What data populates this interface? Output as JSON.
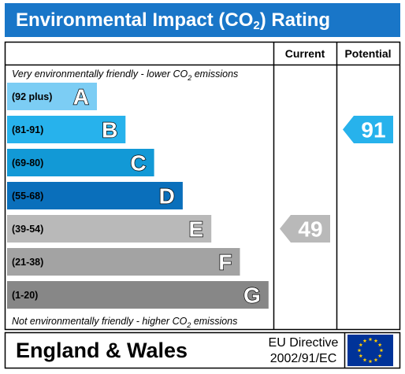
{
  "title_main": "Environmental Impact (CO",
  "title_sub": "2",
  "title_end": ") Rating",
  "columns": {
    "current": "Current",
    "potential": "Potential"
  },
  "top_note": {
    "main": "Very environmentally friendly - lower CO",
    "sub": "2",
    "end": " emissions"
  },
  "bottom_note": {
    "main": "Not environmentally friendly - higher CO",
    "sub": "2",
    "end": " emissions"
  },
  "footer": {
    "region": "England & Wales",
    "directive_line1": "EU Directive",
    "directive_line2": "2002/91/EC"
  },
  "chart_data": {
    "type": "bar",
    "categories": [
      "A",
      "B",
      "C",
      "D",
      "E",
      "F",
      "G"
    ],
    "ranges": [
      "(92 plus)",
      "(81-91)",
      "(69-80)",
      "(55-68)",
      "(39-54)",
      "(21-38)",
      "(1-20)"
    ],
    "band_min": [
      92,
      81,
      69,
      55,
      39,
      21,
      1
    ],
    "colors": [
      "#7ccdf4",
      "#27b2ec",
      "#1299d6",
      "#0a6fbb",
      "#b9b9b9",
      "#a3a3a3",
      "#878787"
    ],
    "current": {
      "value": 49,
      "band": "E",
      "color": "#b9b9b9"
    },
    "potential": {
      "value": 91,
      "band": "B",
      "color": "#27b2ec"
    }
  }
}
